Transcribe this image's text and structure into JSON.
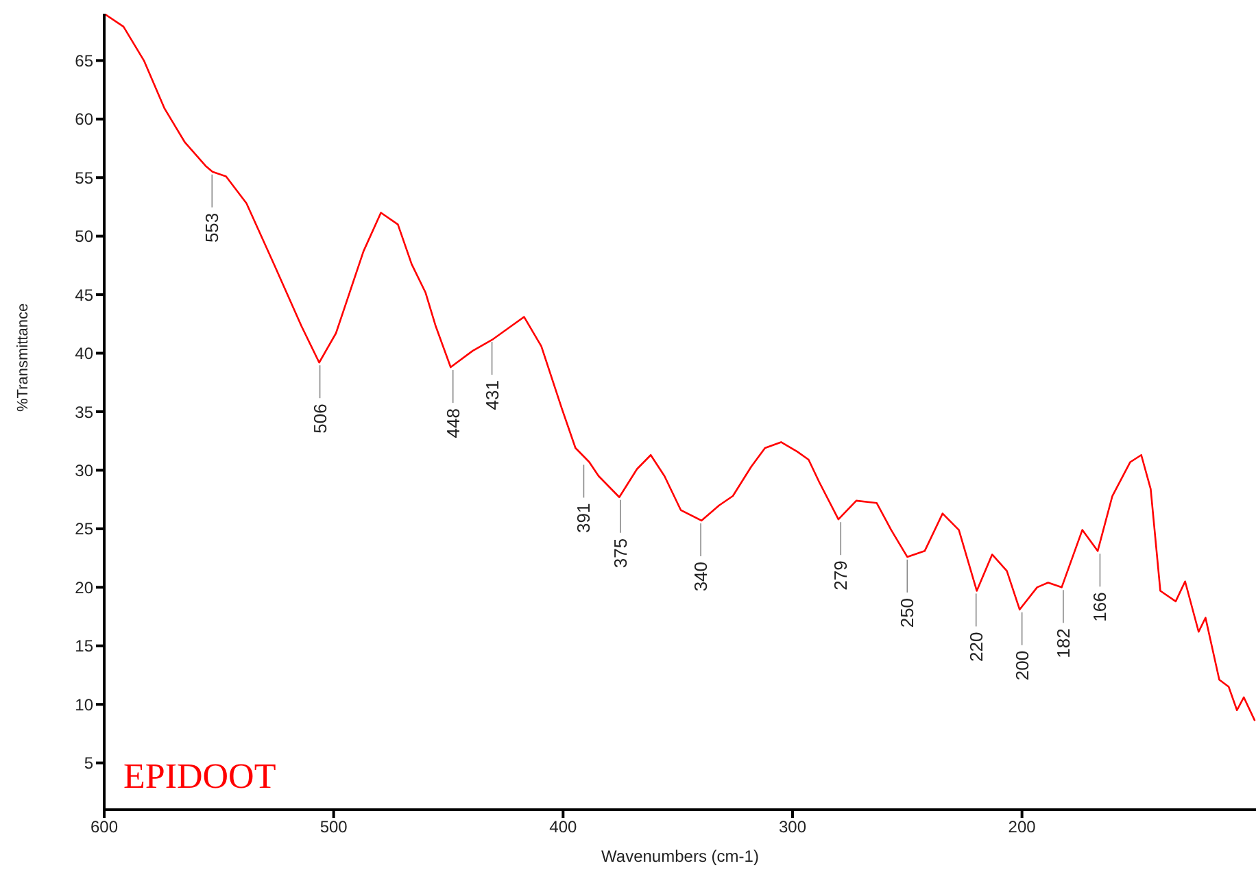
{
  "chart_data": {
    "type": "line",
    "title": "EPIDOOT",
    "xlabel": "Wavenumbers (cm-1)",
    "ylabel": "%Transmittance",
    "x": [
      600,
      591.6,
      582.7,
      573.7,
      564.8,
      555.8,
      552.8,
      546.9,
      538,
      526,
      514,
      506.3,
      499,
      487,
      479.4,
      472,
      466,
      460,
      455.5,
      449,
      439.4,
      430.5,
      422.7,
      417,
      409.5,
      400.6,
      394.6,
      388.6,
      384.5,
      375.5,
      367.8,
      361.8,
      355.8,
      348.7,
      339.7,
      332,
      326,
      318,
      312,
      305,
      298,
      293,
      288.4,
      280,
      272.2,
      263.3,
      257,
      250,
      242.4,
      234.6,
      227.5,
      219.7,
      213,
      206.6,
      201,
      193.4,
      188.6,
      182.7,
      173.7,
      167,
      160.6,
      152.8,
      148,
      143.9,
      139.7,
      133,
      128.9,
      123,
      120,
      114,
      109.9,
      106.3,
      103.3,
      98.5
    ],
    "series": [
      {
        "color": "#ff0000",
        "values": [
          69,
          67.9,
          65,
          60.9,
          58,
          56,
          55.5,
          55.1,
          52.8,
          47.6,
          42.3,
          39.2,
          41.7,
          48.7,
          52,
          51,
          47.6,
          45.2,
          42.3,
          38.8,
          40.2,
          41.2,
          42.3,
          43.1,
          40.6,
          35.3,
          31.9,
          30.7,
          29.5,
          27.7,
          30.1,
          31.3,
          29.5,
          26.6,
          25.7,
          27,
          27.8,
          30.3,
          31.9,
          32.4,
          31.6,
          30.9,
          29,
          25.8,
          27.4,
          27.2,
          24.9,
          22.6,
          23.1,
          26.3,
          24.9,
          19.7,
          22.8,
          21.4,
          18.1,
          20,
          20.4,
          20,
          24.9,
          23.1,
          27.8,
          30.7,
          31.3,
          28.4,
          19.7,
          18.8,
          20.5,
          16.2,
          17.4,
          12.1,
          11.5,
          9.5,
          10.6,
          8.6
        ]
      }
    ],
    "xlim": [
      600,
      98
    ],
    "ylim": [
      1,
      69
    ],
    "xticks": [
      600,
      500,
      400,
      300,
      200
    ],
    "yticks": [
      5,
      10,
      15,
      20,
      25,
      30,
      35,
      40,
      45,
      50,
      55,
      60,
      65
    ],
    "grid": false,
    "legend": false,
    "marker": "none",
    "line_style": "solid",
    "annotations": [
      {
        "text": "553",
        "x": 553,
        "y": 55.5
      },
      {
        "text": "506",
        "x": 506,
        "y": 39.2
      },
      {
        "text": "448",
        "x": 448,
        "y": 38.8
      },
      {
        "text": "431",
        "x": 431,
        "y": 41.2
      },
      {
        "text": "391",
        "x": 391,
        "y": 30.7
      },
      {
        "text": "375",
        "x": 375,
        "y": 27.7
      },
      {
        "text": "340",
        "x": 340,
        "y": 25.7
      },
      {
        "text": "279",
        "x": 279,
        "y": 25.8
      },
      {
        "text": "250",
        "x": 250,
        "y": 22.6
      },
      {
        "text": "220",
        "x": 220,
        "y": 19.7
      },
      {
        "text": "200",
        "x": 200,
        "y": 18.1
      },
      {
        "text": "182",
        "x": 182,
        "y": 20
      },
      {
        "text": "166",
        "x": 166,
        "y": 23.1
      }
    ]
  }
}
